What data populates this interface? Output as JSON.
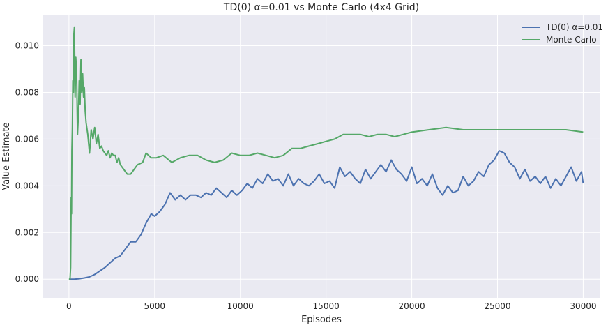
{
  "chart_data": {
    "type": "line",
    "title": "TD(0) α=0.01 vs Monte Carlo (4x4 Grid)",
    "xlabel": "Episodes",
    "ylabel": "Value Estimate",
    "xlim": [
      -1500,
      31000
    ],
    "ylim": [
      -0.0008,
      0.0113
    ],
    "xticks": [
      0,
      5000,
      10000,
      15000,
      20000,
      25000,
      30000
    ],
    "xtick_labels": [
      "0",
      "5000",
      "10000",
      "15000",
      "20000",
      "25000",
      "30000"
    ],
    "yticks": [
      0.0,
      0.002,
      0.004,
      0.006,
      0.008,
      0.01
    ],
    "ytick_labels": [
      "0.000",
      "0.002",
      "0.004",
      "0.006",
      "0.008",
      "0.010"
    ],
    "grid": true,
    "legend_position": "top-right",
    "colors": {
      "background": "#eaeaf2",
      "grid": "#ffffff",
      "td": "#4c72b0",
      "mc": "#55a868"
    },
    "series": [
      {
        "name": "TD(0) α=0.01",
        "color": "#4c72b0",
        "x": [
          0,
          300,
          600,
          900,
          1200,
          1500,
          1800,
          2100,
          2400,
          2700,
          3000,
          3300,
          3600,
          3900,
          4200,
          4500,
          4800,
          5000,
          5300,
          5600,
          5900,
          6200,
          6500,
          6800,
          7100,
          7400,
          7700,
          8000,
          8300,
          8600,
          8900,
          9200,
          9500,
          9800,
          10100,
          10400,
          10700,
          11000,
          11300,
          11600,
          11900,
          12200,
          12500,
          12800,
          13100,
          13400,
          13700,
          14000,
          14300,
          14600,
          14900,
          15200,
          15500,
          15800,
          16100,
          16400,
          16700,
          17000,
          17300,
          17600,
          17900,
          18200,
          18500,
          18800,
          19100,
          19400,
          19700,
          20000,
          20300,
          20600,
          20900,
          21200,
          21500,
          21800,
          22100,
          22400,
          22700,
          23000,
          23300,
          23600,
          23900,
          24200,
          24500,
          24800,
          25100,
          25400,
          25700,
          26000,
          26300,
          26600,
          26900,
          27200,
          27500,
          27800,
          28100,
          28400,
          28700,
          29000,
          29300,
          29600,
          29900,
          30000
        ],
        "y": [
          0.0,
          0.0,
          2e-05,
          5e-05,
          0.0001,
          0.0002,
          0.00035,
          0.0005,
          0.0007,
          0.0009,
          0.001,
          0.0013,
          0.0016,
          0.0016,
          0.0019,
          0.0024,
          0.0028,
          0.0027,
          0.0029,
          0.0032,
          0.0037,
          0.0034,
          0.0036,
          0.0034,
          0.0036,
          0.0036,
          0.0035,
          0.0037,
          0.0036,
          0.0039,
          0.0037,
          0.0035,
          0.0038,
          0.0036,
          0.0038,
          0.0041,
          0.0039,
          0.0043,
          0.0041,
          0.0045,
          0.0042,
          0.0043,
          0.004,
          0.0045,
          0.004,
          0.0043,
          0.0041,
          0.004,
          0.0042,
          0.0045,
          0.0041,
          0.0042,
          0.0039,
          0.0048,
          0.0044,
          0.0046,
          0.0043,
          0.0041,
          0.0047,
          0.0043,
          0.0046,
          0.0049,
          0.0046,
          0.0051,
          0.0047,
          0.0045,
          0.0042,
          0.0048,
          0.0041,
          0.0043,
          0.004,
          0.0045,
          0.0039,
          0.0036,
          0.004,
          0.0037,
          0.0038,
          0.0044,
          0.004,
          0.0042,
          0.0046,
          0.0044,
          0.0049,
          0.0051,
          0.0055,
          0.0054,
          0.005,
          0.0048,
          0.0043,
          0.0047,
          0.0042,
          0.0044,
          0.0041,
          0.0044,
          0.0039,
          0.0043,
          0.004,
          0.0044,
          0.0048,
          0.0042,
          0.0046,
          0.0041
        ]
      },
      {
        "name": "Monte Carlo",
        "color": "#55a868",
        "x": [
          0,
          60,
          100,
          130,
          150,
          170,
          200,
          230,
          260,
          290,
          320,
          360,
          400,
          450,
          500,
          550,
          600,
          650,
          700,
          750,
          800,
          850,
          900,
          950,
          1000,
          1100,
          1200,
          1300,
          1400,
          1500,
          1600,
          1700,
          1800,
          1900,
          2000,
          2100,
          2200,
          2300,
          2400,
          2500,
          2600,
          2700,
          2800,
          2900,
          3000,
          3200,
          3400,
          3600,
          3800,
          4000,
          4300,
          4500,
          4800,
          5100,
          5500,
          6000,
          6500,
          7000,
          7500,
          8000,
          8500,
          9000,
          9500,
          10000,
          10500,
          11000,
          11500,
          12000,
          12500,
          13000,
          13500,
          14000,
          14500,
          15000,
          15500,
          16000,
          16500,
          17000,
          17500,
          18000,
          18500,
          19000,
          19500,
          20000,
          21000,
          22000,
          23000,
          24000,
          25000,
          26000,
          27000,
          28000,
          29000,
          30000
        ],
        "y": [
          0.0,
          0.0,
          0.0005,
          0.0035,
          0.0028,
          0.0055,
          0.0065,
          0.0085,
          0.008,
          0.0105,
          0.0108,
          0.0078,
          0.0095,
          0.0088,
          0.0062,
          0.007,
          0.0085,
          0.0075,
          0.0094,
          0.008,
          0.0088,
          0.0078,
          0.0082,
          0.0072,
          0.0067,
          0.0062,
          0.0054,
          0.0064,
          0.006,
          0.0065,
          0.0058,
          0.0062,
          0.0056,
          0.0057,
          0.0055,
          0.0054,
          0.0053,
          0.0055,
          0.0052,
          0.0054,
          0.0053,
          0.0053,
          0.005,
          0.0052,
          0.0049,
          0.0047,
          0.0045,
          0.0045,
          0.0047,
          0.0049,
          0.005,
          0.0054,
          0.0052,
          0.0052,
          0.0053,
          0.005,
          0.0052,
          0.0053,
          0.0053,
          0.0051,
          0.005,
          0.0051,
          0.0054,
          0.0053,
          0.0053,
          0.0054,
          0.0053,
          0.0052,
          0.0053,
          0.0056,
          0.0056,
          0.0057,
          0.0058,
          0.0059,
          0.006,
          0.0062,
          0.0062,
          0.0062,
          0.0061,
          0.0062,
          0.0062,
          0.0061,
          0.0062,
          0.0063,
          0.0064,
          0.0065,
          0.0064,
          0.0064,
          0.0064,
          0.0064,
          0.0064,
          0.0064,
          0.0064,
          0.0063
        ]
      }
    ]
  }
}
